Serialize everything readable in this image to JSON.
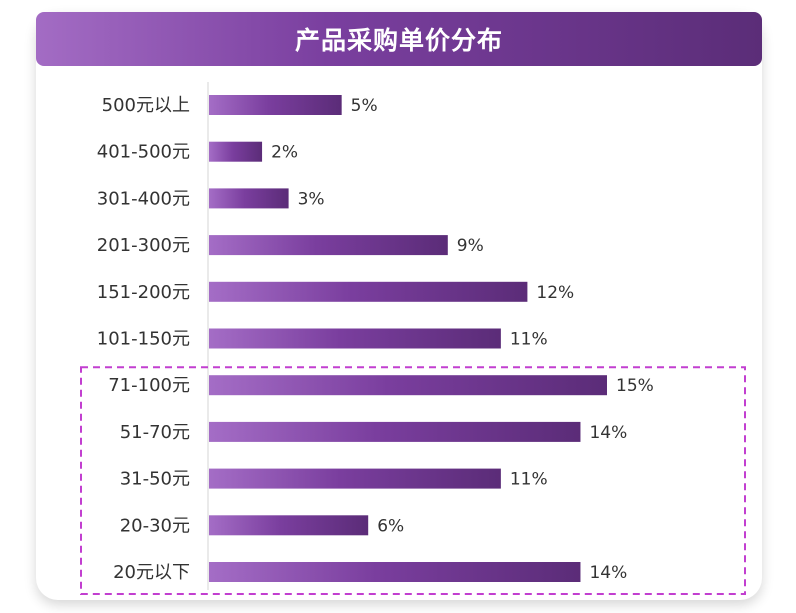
{
  "title": "产品采购单价分布",
  "colors": {
    "bar_start": "#a46dc6",
    "bar_mid": "#7a3e9e",
    "bar_end": "#5b2c78",
    "highlight_border": "#c23fd0",
    "axis": "#d6d6d6"
  },
  "chart_data": {
    "type": "bar",
    "orientation": "horizontal",
    "title": "产品采购单价分布",
    "categories": [
      "500元以上",
      "401-500元",
      "301-400元",
      "201-300元",
      "151-200元",
      "101-150元",
      "71-100元",
      "51-70元",
      "31-50元",
      "20-30元",
      "20元以下"
    ],
    "values": [
      5,
      2,
      3,
      9,
      12,
      11,
      15,
      14,
      11,
      6,
      14
    ],
    "value_labels": [
      "5%",
      "2%",
      "3%",
      "9%",
      "12%",
      "11%",
      "15%",
      "14%",
      "11%",
      "6%",
      "14%"
    ],
    "unit": "%",
    "xlim": [
      0,
      15
    ],
    "grid": false,
    "highlighted_categories": [
      "71-100元",
      "51-70元",
      "31-50元",
      "20-30元",
      "20元以下"
    ]
  }
}
